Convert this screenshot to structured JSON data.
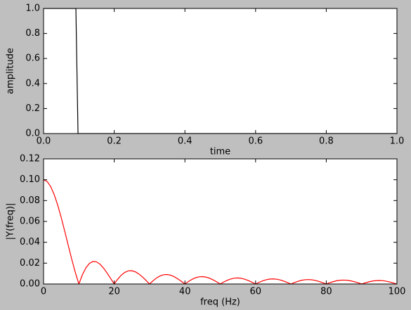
{
  "chart_data": [
    {
      "type": "line",
      "xlabel": "time",
      "ylabel": "amplitude",
      "x": [
        0,
        0.0915,
        0.0975,
        1
      ],
      "series": [
        {
          "color": "#000000",
          "values": [
            1,
            1,
            0,
            0
          ]
        }
      ],
      "xlim": [
        0,
        1
      ],
      "ylim": [
        0,
        1
      ],
      "xticks": [
        {
          "value": 0,
          "label": "0.0"
        },
        0.2,
        0.4,
        0.6,
        0.8,
        {
          "value": 1,
          "label": "1.0"
        }
      ],
      "yticks": [
        {
          "value": 0,
          "label": "0.0"
        },
        0.2,
        0.4,
        0.6,
        0.8,
        {
          "value": 1,
          "label": "1.0"
        }
      ]
    },
    {
      "type": "line",
      "xlabel": "freq (Hz)",
      "ylabel": "|Y(freq)|",
      "x": [
        0,
        1,
        2,
        3,
        4,
        5,
        6,
        7,
        8,
        9,
        10,
        11,
        12,
        13,
        14,
        15,
        16,
        17,
        18,
        19,
        20,
        21,
        22,
        23,
        24,
        25,
        26,
        27,
        28,
        29,
        30,
        31,
        32,
        33,
        34,
        35,
        36,
        37,
        38,
        39,
        40,
        41,
        42,
        43,
        44,
        45,
        46,
        47,
        48,
        49,
        50,
        51,
        52,
        53,
        54,
        55,
        56,
        57,
        58,
        59,
        60,
        61,
        62,
        63,
        64,
        65,
        66,
        67,
        68,
        69,
        70,
        71,
        72,
        73,
        74,
        75,
        76,
        77,
        78,
        79,
        80,
        81,
        82,
        83,
        84,
        85,
        86,
        87,
        88,
        89,
        90,
        91,
        92,
        93,
        94,
        95,
        96,
        97,
        98,
        99,
        100
      ],
      "series": [
        {
          "color": "#ff0000",
          "values": [
            0.1,
            0.0984,
            0.0935,
            0.0858,
            0.0757,
            0.0637,
            0.0505,
            0.0368,
            0.0234,
            0.0109,
            0,
            0.00894,
            0.01559,
            0.01981,
            0.02162,
            0.02122,
            0.01892,
            0.01515,
            0.01039,
            0.00518,
            0,
            0.00468,
            0.0085,
            0.0112,
            0.01261,
            0.01273,
            0.01164,
            0.00954,
            0.00668,
            0.00339,
            0,
            0.00317,
            0.00585,
            0.0078,
            0.0089,
            0.00909,
            0.00841,
            0.00696,
            0.00492,
            0.00252,
            0,
            0.0024,
            0.00445,
            0.00599,
            0.00688,
            0.00707,
            0.00658,
            0.00548,
            0.0039,
            0.00201,
            0,
            0.00193,
            0.0036,
            0.00486,
            0.00561,
            0.00579,
            0.00541,
            0.00452,
            0.00323,
            0.00167,
            0,
            0.00161,
            0.00302,
            0.00409,
            0.00473,
            0.0049,
            0.00459,
            0.00384,
            0.00275,
            0.00143,
            0,
            0.00139,
            0.0026,
            0.00353,
            0.00409,
            0.00424,
            0.00398,
            0.00334,
            0.0024,
            0.00125,
            0,
            0.00121,
            0.00228,
            0.0031,
            0.0036,
            0.00374,
            0.00352,
            0.00296,
            0.00213,
            0.00111,
            0,
            0.00108,
            0.00203,
            0.00277,
            0.00322,
            0.00335,
            0.00315,
            0.00265,
            0.00191,
            0.00099,
            0
          ]
        }
      ],
      "xlim": [
        0,
        100
      ],
      "ylim": [
        0,
        0.12
      ],
      "xticks": [
        0,
        20,
        40,
        60,
        80,
        100
      ],
      "yticks": [
        {
          "value": 0,
          "label": "0.00"
        },
        0.02,
        0.04,
        0.06,
        0.08,
        {
          "value": 0.1,
          "label": "0.10"
        },
        0.12
      ]
    }
  ]
}
